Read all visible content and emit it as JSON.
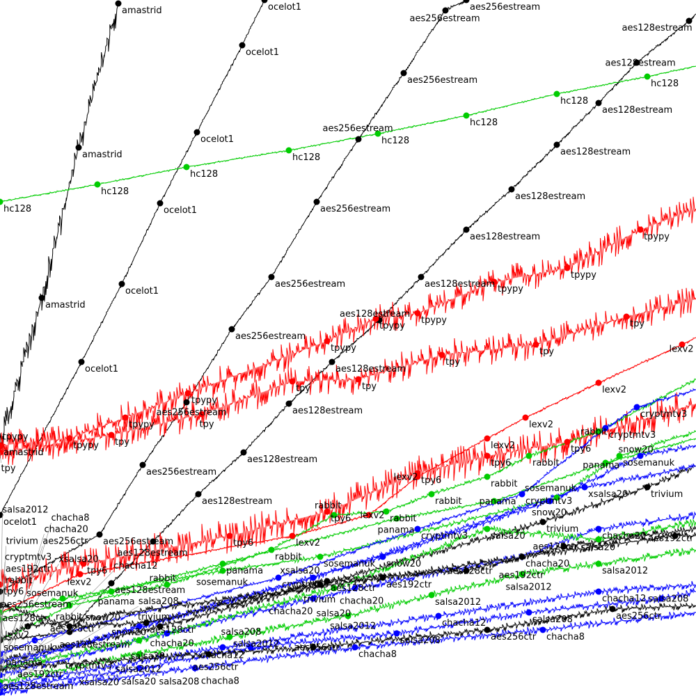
{
  "chart_data": {
    "type": "line",
    "title": "",
    "xlabel": "",
    "ylabel": "",
    "xlim": [
      0,
      100
    ],
    "ylim": [
      0,
      100
    ],
    "grid": false,
    "legend": "none (labels placed inline at markers)",
    "series": [
      {
        "name": "amastrid",
        "color": "#000000",
        "noise": 2.2,
        "points": [
          [
            0,
            36
          ],
          [
            6,
            57.2
          ],
          [
            11.3,
            78.8
          ],
          [
            17,
            99.5
          ]
        ]
      },
      {
        "name": "ocelot1",
        "color": "#000000",
        "noise": 0.4,
        "points": [
          [
            0,
            26
          ],
          [
            11.7,
            48
          ],
          [
            17.5,
            59.2
          ],
          [
            23,
            70.8
          ],
          [
            28.3,
            81
          ],
          [
            34.8,
            93.5
          ],
          [
            38,
            100
          ]
        ]
      },
      {
        "name": "hc128",
        "color": "#00cc00",
        "noise": 0.2,
        "points": [
          [
            0,
            71
          ],
          [
            14,
            73.5
          ],
          [
            26.8,
            76
          ],
          [
            41.5,
            78.4
          ],
          [
            54.3,
            80.8
          ],
          [
            67,
            83.4
          ],
          [
            80,
            86.5
          ],
          [
            93,
            89
          ],
          [
            100,
            90.5
          ]
        ]
      },
      {
        "name": "aes256estream",
        "color": "#000000",
        "noise": 0.4,
        "points": [
          [
            0,
            15
          ],
          [
            14.3,
            23.2
          ],
          [
            20.5,
            33.2
          ],
          [
            26.8,
            42.2
          ],
          [
            33.3,
            52.7
          ],
          [
            39,
            60.2
          ],
          [
            45.5,
            71
          ],
          [
            51.5,
            80
          ],
          [
            58,
            89.5
          ],
          [
            64,
            98.5
          ],
          [
            67,
            100
          ]
        ]
      },
      {
        "name": "aes128estream",
        "color": "#000000",
        "noise": 0.4,
        "points": [
          [
            0,
            8
          ],
          [
            10,
            9.2
          ],
          [
            16,
            16.2
          ],
          [
            22,
            22.2
          ],
          [
            28.5,
            29
          ],
          [
            35,
            35
          ],
          [
            41.5,
            42
          ],
          [
            47.7,
            48
          ],
          [
            54.5,
            54
          ],
          [
            60.5,
            60.2
          ],
          [
            67,
            67
          ],
          [
            73.5,
            72.8
          ],
          [
            80,
            79.2
          ],
          [
            86,
            85.2
          ],
          [
            91.5,
            91
          ],
          [
            99,
            97
          ],
          [
            100,
            98
          ]
        ]
      },
      {
        "name": "tpypy",
        "color": "#ff0000",
        "noise": 2.2,
        "points": [
          [
            0,
            36
          ],
          [
            10,
            37
          ],
          [
            18,
            40
          ],
          [
            27,
            43.5
          ],
          [
            47,
            51
          ],
          [
            54,
            54.2
          ],
          [
            60,
            55
          ],
          [
            71,
            59.5
          ],
          [
            81.5,
            61.5
          ],
          [
            92,
            67
          ],
          [
            100,
            70
          ]
        ]
      },
      {
        "name": "tpy",
        "color": "#ff0000",
        "noise": 2.2,
        "points": [
          [
            0,
            35
          ],
          [
            16,
            37.5
          ],
          [
            29,
            40.5
          ],
          [
            42,
            45.2
          ],
          [
            51.5,
            45.5
          ],
          [
            63.5,
            49
          ],
          [
            77,
            50.5
          ],
          [
            90,
            54.5
          ],
          [
            100,
            57
          ]
        ]
      },
      {
        "name": "tpy6",
        "color": "#ff0000",
        "noise": 2.5,
        "points": [
          [
            0,
            16
          ],
          [
            12,
            19
          ],
          [
            33,
            23
          ],
          [
            47,
            26.5
          ],
          [
            60,
            32
          ],
          [
            70,
            34.5
          ],
          [
            81.5,
            36.5
          ],
          [
            100,
            42
          ]
        ]
      },
      {
        "name": "lexv2",
        "color": "#ff0000",
        "noise": 0.3,
        "points": [
          [
            0,
            12
          ],
          [
            11.5,
            17.5
          ],
          [
            42,
            23
          ],
          [
            53,
            26
          ],
          [
            60,
            31.5
          ],
          [
            70,
            37
          ],
          [
            75.5,
            40
          ],
          [
            86,
            45
          ],
          [
            98,
            50.5
          ],
          [
            100,
            51.5
          ]
        ]
      },
      {
        "name": "rabbit",
        "color": "#00cc00",
        "noise": 0.5,
        "points": [
          [
            0,
            8
          ],
          [
            10,
            13
          ],
          [
            24,
            16
          ],
          [
            39,
            21
          ],
          [
            48,
            26
          ],
          [
            55.5,
            26.5
          ],
          [
            62,
            29
          ],
          [
            70,
            31.5
          ],
          [
            76,
            34.5
          ],
          [
            86,
            38
          ],
          [
            100,
            45.5
          ]
        ]
      },
      {
        "name": "panama",
        "color": "#00cc00",
        "noise": 0.4,
        "points": [
          [
            0,
            11
          ],
          [
            16,
            15
          ],
          [
            32,
            19
          ],
          [
            57,
            25.5
          ],
          [
            71,
            28
          ],
          [
            87,
            33.5
          ],
          [
            100,
            37
          ]
        ]
      },
      {
        "name": "sosemanuk",
        "color": "#00cc00",
        "noise": 0.6,
        "points": [
          [
            0,
            12
          ],
          [
            9,
            14
          ],
          [
            32,
            18
          ],
          [
            46,
            20
          ],
          [
            80,
            28.5
          ],
          [
            89,
            34.5
          ],
          [
            100,
            38
          ]
        ]
      },
      {
        "name": "cryptmtv3",
        "color": "#0000ff",
        "noise": 0.5,
        "points": [
          [
            0,
            6
          ],
          [
            5,
            8
          ],
          [
            40,
            17
          ],
          [
            60,
            24
          ],
          [
            75,
            29
          ],
          [
            87,
            38.5
          ],
          [
            91.5,
            41.5
          ],
          [
            100,
            44
          ]
        ]
      },
      {
        "name": "snow20",
        "color": "#0000ff",
        "noise": 0.8,
        "points": [
          [
            0,
            4
          ],
          [
            20,
            10
          ],
          [
            55,
            20
          ],
          [
            79,
            28
          ],
          [
            92,
            34.5
          ],
          [
            100,
            36
          ]
        ]
      },
      {
        "name": "trivium",
        "color": "#000000",
        "noise": 1.0,
        "points": [
          [
            0,
            5
          ],
          [
            23,
            10
          ],
          [
            46,
            16
          ],
          [
            78,
            25
          ],
          [
            93,
            30
          ],
          [
            100,
            33
          ]
        ]
      },
      {
        "name": "chacha20",
        "color": "#0000ff",
        "noise": 1.0,
        "points": [
          [
            0,
            3
          ],
          [
            24,
            9
          ],
          [
            45,
            14
          ],
          [
            51,
            15.5
          ],
          [
            75,
            20
          ],
          [
            86,
            24
          ],
          [
            100,
            26
          ]
        ]
      },
      {
        "name": "salsa20",
        "color": "#00cc00",
        "noise": 1.0,
        "points": [
          [
            0,
            4
          ],
          [
            20,
            8
          ],
          [
            48,
            15.5
          ],
          [
            70,
            24
          ],
          [
            86,
            22.5
          ],
          [
            100,
            25
          ]
        ]
      },
      {
        "name": "xsalsa20",
        "color": "#0000ff",
        "noise": 0.8,
        "points": [
          [
            0,
            5
          ],
          [
            10,
            7
          ],
          [
            45,
            17
          ],
          [
            84,
            30
          ],
          [
            100,
            33
          ]
        ]
      },
      {
        "name": "salsa2012",
        "color": "#00cc00",
        "noise": 1.0,
        "points": [
          [
            0,
            2
          ],
          [
            20,
            6
          ],
          [
            33,
            8.5
          ],
          [
            50,
            11.5
          ],
          [
            62,
            14.5
          ],
          [
            75,
            17.5
          ],
          [
            86,
            19
          ],
          [
            100,
            21
          ]
        ]
      },
      {
        "name": "chacha12",
        "color": "#0000ff",
        "noise": 1.0,
        "points": [
          [
            0,
            1.5
          ],
          [
            32,
            7
          ],
          [
            63,
            11.5
          ],
          [
            86,
            15
          ],
          [
            100,
            16
          ]
        ]
      },
      {
        "name": "salsa208",
        "color": "#0000ff",
        "noise": 1.0,
        "points": [
          [
            0,
            1
          ],
          [
            20,
            4
          ],
          [
            36,
            7
          ],
          [
            57,
            9
          ],
          [
            76,
            12
          ],
          [
            95,
            14
          ],
          [
            100,
            15
          ]
        ]
      },
      {
        "name": "chacha8",
        "color": "#0000ff",
        "noise": 1.0,
        "points": [
          [
            0,
            0.5
          ],
          [
            28,
            4
          ],
          [
            51,
            7
          ],
          [
            78,
            9.5
          ],
          [
            100,
            12
          ]
        ]
      },
      {
        "name": "aes128ctr",
        "color": "#000000",
        "noise": 1.0,
        "points": [
          [
            0,
            13
          ],
          [
            10,
            10
          ],
          [
            21,
            10.5
          ],
          [
            47,
            16.5
          ],
          [
            67,
            18
          ],
          [
            81,
            21.5
          ],
          [
            100,
            24
          ]
        ]
      },
      {
        "name": "aes192ctr",
        "color": "#000000",
        "noise": 1.0,
        "points": [
          [
            0,
            8
          ],
          [
            4,
            10
          ],
          [
            55,
            17
          ],
          [
            75,
            20
          ],
          [
            97,
            23
          ],
          [
            100,
            23
          ]
        ]
      },
      {
        "name": "aes256ctr",
        "color": "#000000",
        "noise": 1.0,
        "points": [
          [
            0,
            4
          ],
          [
            30,
            6
          ],
          [
            45,
            7
          ],
          [
            70,
            9.5
          ],
          [
            88,
            12.5
          ],
          [
            100,
            13
          ]
        ]
      }
    ]
  }
}
